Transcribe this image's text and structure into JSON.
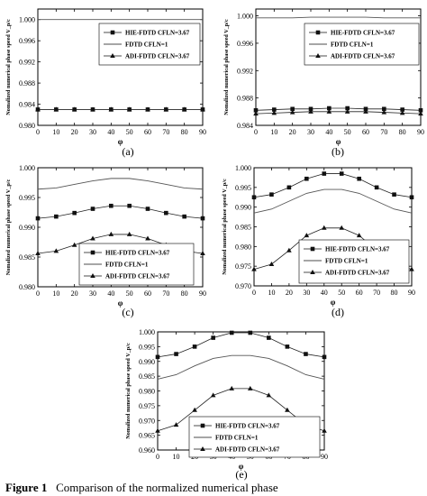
{
  "caption": {
    "prefix": "Figure 1",
    "text": "Comparison of the normalized numerical phase"
  },
  "chart_data": [
    {
      "type": "line",
      "panel_label": "(a)",
      "xlabel": "φ",
      "ylabel": "Nomalized numerical phase speed V_p/c",
      "xlim": [
        0,
        90
      ],
      "ylim": [
        0.98,
        1.002
      ],
      "yticks": [
        0.98,
        0.984,
        0.988,
        0.992,
        0.996,
        1.0
      ],
      "xticks": [
        0,
        10,
        20,
        30,
        40,
        50,
        60,
        70,
        80,
        90
      ],
      "legend": "top-right",
      "series": [
        {
          "name": "HIE-FDTD  CFLN=3.67",
          "marker": "square",
          "x": [
            0,
            10,
            20,
            30,
            40,
            50,
            60,
            70,
            80,
            90
          ],
          "values": [
            0.983,
            0.983,
            0.983,
            0.983,
            0.983,
            0.983,
            0.983,
            0.983,
            0.983,
            0.983
          ]
        },
        {
          "name": "FDTD        CFLN=1",
          "marker": "none",
          "x": [
            0,
            10,
            20,
            30,
            40,
            50,
            60,
            70,
            80,
            90
          ],
          "values": [
            1.0,
            1.0,
            1.0,
            1.0,
            1.0,
            1.0,
            1.0,
            1.0,
            1.0,
            1.0
          ]
        },
        {
          "name": "ADI-FDTD  CFLN=3.67",
          "marker": "triangle",
          "x": [
            0,
            10,
            20,
            30,
            40,
            50,
            60,
            70,
            80,
            90
          ],
          "values": [
            0.983,
            0.983,
            0.983,
            0.983,
            0.983,
            0.983,
            0.983,
            0.983,
            0.983,
            0.983
          ]
        }
      ]
    },
    {
      "type": "line",
      "panel_label": "(b)",
      "xlabel": "φ",
      "ylabel": "Nomalized numerical phase speed V_p/c",
      "xlim": [
        0,
        90
      ],
      "ylim": [
        0.984,
        1.001
      ],
      "yticks": [
        0.984,
        0.988,
        0.992,
        0.996,
        1.0
      ],
      "xticks": [
        0,
        10,
        20,
        30,
        40,
        50,
        60,
        70,
        80,
        90
      ],
      "legend": "top-right",
      "series": [
        {
          "name": "HIE-FDTD  CFLN=3.67",
          "marker": "square",
          "x": [
            0,
            10,
            20,
            30,
            40,
            50,
            60,
            70,
            80,
            90
          ],
          "values": [
            0.9862,
            0.9863,
            0.9864,
            0.9864,
            0.9865,
            0.9865,
            0.9864,
            0.9864,
            0.9863,
            0.9862
          ]
        },
        {
          "name": "FDTD        CFLN=1",
          "marker": "none",
          "x": [
            0,
            10,
            20,
            30,
            40,
            50,
            60,
            70,
            80,
            90
          ],
          "values": [
            0.9997,
            0.9997,
            0.9997,
            0.9998,
            0.9998,
            0.9998,
            0.9998,
            0.9997,
            0.9997,
            0.9997
          ]
        },
        {
          "name": "ADI-FDTD  CFLN=3.67",
          "marker": "triangle",
          "x": [
            0,
            10,
            20,
            30,
            40,
            50,
            60,
            70,
            80,
            90
          ],
          "values": [
            0.9857,
            0.9858,
            0.9859,
            0.986,
            0.986,
            0.986,
            0.986,
            0.9859,
            0.9858,
            0.9857
          ]
        }
      ]
    },
    {
      "type": "line",
      "panel_label": "(c)",
      "xlabel": "φ",
      "ylabel": "Nomalized numerical phase speed V_p/c",
      "xlim": [
        0,
        90
      ],
      "ylim": [
        0.98,
        1.0
      ],
      "yticks": [
        0.98,
        0.985,
        0.99,
        0.995,
        1.0
      ],
      "xticks": [
        0,
        10,
        20,
        30,
        40,
        50,
        60,
        70,
        80,
        90
      ],
      "legend": "bottom-center",
      "series": [
        {
          "name": "HIE-FDTD  CFLN=3.67",
          "marker": "square",
          "x": [
            0,
            10,
            20,
            30,
            40,
            50,
            60,
            70,
            80,
            90
          ],
          "values": [
            0.9915,
            0.9918,
            0.9924,
            0.9931,
            0.9936,
            0.9936,
            0.9931,
            0.9924,
            0.9918,
            0.9915
          ]
        },
        {
          "name": "FDTD        CFLN=1",
          "marker": "none",
          "x": [
            0,
            10,
            20,
            30,
            40,
            50,
            60,
            70,
            80,
            90
          ],
          "values": [
            0.9964,
            0.9966,
            0.9972,
            0.9978,
            0.9982,
            0.9982,
            0.9978,
            0.9972,
            0.9966,
            0.9964
          ]
        },
        {
          "name": "ADI-FDTD  CFLN=3.67",
          "marker": "triangle",
          "x": [
            0,
            10,
            20,
            30,
            40,
            50,
            60,
            70,
            80,
            90
          ],
          "values": [
            0.9856,
            0.986,
            0.987,
            0.9881,
            0.9888,
            0.9888,
            0.9881,
            0.987,
            0.986,
            0.9856
          ]
        }
      ]
    },
    {
      "type": "line",
      "panel_label": "(d)",
      "xlabel": "φ",
      "ylabel": "Nomalized numerical phase speed V_p/c",
      "xlim": [
        0,
        90
      ],
      "ylim": [
        0.97,
        1.0
      ],
      "yticks": [
        0.97,
        0.975,
        0.98,
        0.985,
        0.99,
        0.995,
        1.0
      ],
      "xticks": [
        0,
        10,
        20,
        30,
        40,
        50,
        60,
        70,
        80,
        90
      ],
      "legend": "bottom-center",
      "series": [
        {
          "name": "HIE-FDTD  CFLN=3.67",
          "marker": "square",
          "x": [
            0,
            10,
            20,
            30,
            40,
            50,
            60,
            70,
            80,
            90
          ],
          "values": [
            0.9925,
            0.9932,
            0.995,
            0.9972,
            0.9985,
            0.9985,
            0.9972,
            0.995,
            0.9932,
            0.9925
          ]
        },
        {
          "name": "FDTD        CFLN=1",
          "marker": "none",
          "x": [
            0,
            10,
            20,
            30,
            40,
            50,
            60,
            70,
            80,
            90
          ],
          "values": [
            0.9885,
            0.9895,
            0.9915,
            0.9935,
            0.9945,
            0.9945,
            0.9935,
            0.9915,
            0.9895,
            0.9885
          ]
        },
        {
          "name": "ADI-FDTD  CFLN=3.67",
          "marker": "triangle",
          "x": [
            0,
            10,
            20,
            30,
            40,
            50,
            60,
            70,
            80,
            90
          ],
          "values": [
            0.9742,
            0.9755,
            0.979,
            0.9828,
            0.9847,
            0.9847,
            0.9828,
            0.979,
            0.9755,
            0.9742
          ]
        }
      ]
    },
    {
      "type": "line",
      "panel_label": "(e)",
      "xlabel": "φ",
      "ylabel": "Nomalized numerical phase speed V_p/c",
      "xlim": [
        0,
        90
      ],
      "ylim": [
        0.96,
        1.0
      ],
      "yticks": [
        0.96,
        0.965,
        0.97,
        0.975,
        0.98,
        0.985,
        0.99,
        0.995,
        1.0
      ],
      "xticks": [
        0,
        10,
        20,
        30,
        40,
        50,
        60,
        70,
        80,
        90
      ],
      "legend": "bottom-center",
      "series": [
        {
          "name": "HIE-FDTD  CFLN=3.67",
          "marker": "square",
          "x": [
            0,
            10,
            20,
            30,
            40,
            50,
            60,
            70,
            80,
            90
          ],
          "values": [
            0.9915,
            0.9925,
            0.995,
            0.998,
            0.9997,
            0.9997,
            0.998,
            0.995,
            0.9925,
            0.9915
          ]
        },
        {
          "name": "FDTD        CFLN=1",
          "marker": "none",
          "x": [
            0,
            10,
            20,
            30,
            40,
            50,
            60,
            70,
            80,
            90
          ],
          "values": [
            0.984,
            0.9855,
            0.9885,
            0.991,
            0.992,
            0.992,
            0.991,
            0.9885,
            0.9855,
            0.984
          ]
        },
        {
          "name": "ADI-FDTD  CFLN=3.67",
          "marker": "triangle",
          "x": [
            0,
            10,
            20,
            30,
            40,
            50,
            60,
            70,
            80,
            90
          ],
          "values": [
            0.9665,
            0.9685,
            0.9735,
            0.9785,
            0.9808,
            0.9808,
            0.9785,
            0.9735,
            0.9685,
            0.9665
          ]
        }
      ]
    }
  ]
}
